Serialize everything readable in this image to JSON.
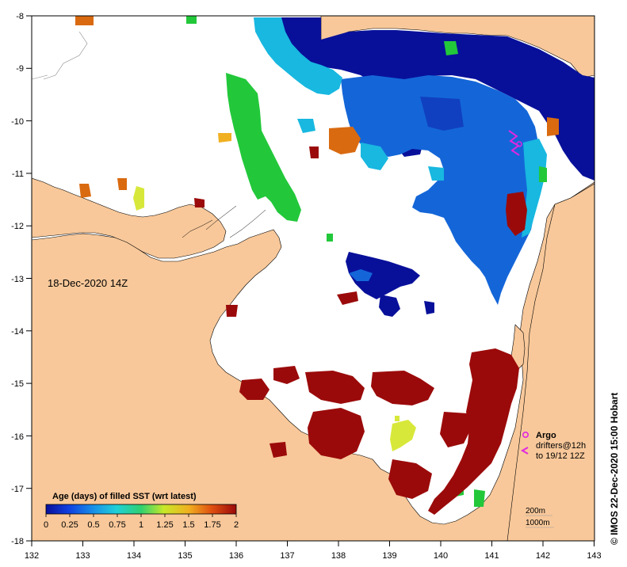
{
  "map": {
    "date_label": "18-Dec-2020 14Z",
    "credit": "© IMOS 22-Dec-2020 15:00 Hobart",
    "longitude_ticks": [
      "132",
      "133",
      "134",
      "135",
      "136",
      "137",
      "138",
      "139",
      "140",
      "141",
      "142",
      "143"
    ],
    "latitude_ticks": [
      "-8",
      "-9",
      "-10",
      "-11",
      "-12",
      "-13",
      "-14",
      "-15",
      "-16",
      "-17",
      "-18"
    ],
    "colorbar": {
      "title": "Age (days) of filled SST (wrt latest)",
      "tick_labels": [
        "0",
        "0.25",
        "0.5",
        "0.75",
        "1",
        "1.25",
        "1.5",
        "1.75",
        "2"
      ]
    },
    "legend": {
      "argo_label": "Argo",
      "drifters_label": "drifters@12h",
      "drifters_sub": "to 19/12 12Z",
      "contour_200": "200m",
      "contour_1000": "1000m"
    },
    "colors": {
      "land": "#f8c89a",
      "no_data": "#ffffff",
      "age_2": "#9b0a0a",
      "age_1_5": "#d96a10",
      "age_1": "#d8e83a",
      "age_0_75": "#22c83a",
      "age_0_5": "#18b8e0",
      "age_0_25": "#1466d8",
      "age_0": "#08109a",
      "argo": "#e028e0"
    }
  }
}
